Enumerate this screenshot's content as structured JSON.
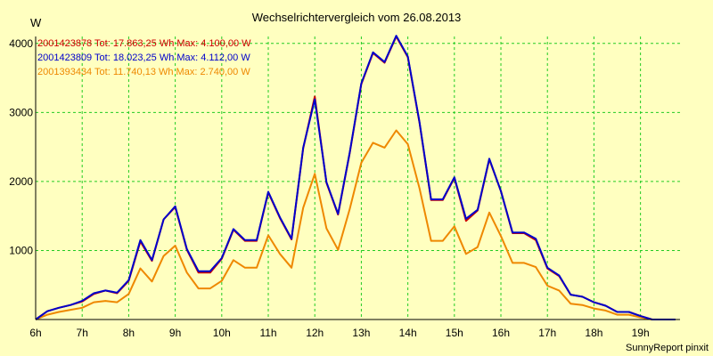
{
  "chart_data": {
    "type": "line",
    "title": "Wechselrichtervergleich vom 26.08.2013",
    "ylabel": "W",
    "ylim": [
      0,
      4100
    ],
    "yticks": [
      1000,
      2000,
      3000,
      4000
    ],
    "xlim": [
      6,
      19.85
    ],
    "xticks": [
      {
        "label": "6h",
        "value": 6
      },
      {
        "label": "7h",
        "value": 7
      },
      {
        "label": "8h",
        "value": 8
      },
      {
        "label": "9h",
        "value": 9
      },
      {
        "label": "10h",
        "value": 10
      },
      {
        "label": "11h",
        "value": 11
      },
      {
        "label": "12h",
        "value": 12
      },
      {
        "label": "13h",
        "value": 13
      },
      {
        "label": "14h",
        "value": 14
      },
      {
        "label": "15h",
        "value": 15
      },
      {
        "label": "16h",
        "value": 16
      },
      {
        "label": "17h",
        "value": 17
      },
      {
        "label": "18h",
        "value": 18
      },
      {
        "label": "19h",
        "value": 19
      }
    ],
    "grid": true,
    "legend_position": "top-left",
    "footer": "SunnyReport pinxit",
    "x": [
      6,
      6.25,
      6.5,
      6.75,
      7,
      7.25,
      7.5,
      7.75,
      8,
      8.25,
      8.5,
      8.75,
      9,
      9.25,
      9.5,
      9.75,
      10,
      10.25,
      10.5,
      10.75,
      11,
      11.25,
      11.5,
      11.75,
      12,
      12.25,
      12.5,
      12.75,
      13,
      13.25,
      13.5,
      13.75,
      14,
      14.25,
      14.5,
      14.75,
      15,
      15.25,
      15.5,
      15.75,
      16,
      16.25,
      16.5,
      16.75,
      17,
      17.25,
      17.5,
      17.75,
      18,
      18.25,
      18.5,
      18.75,
      19,
      19.25,
      19.5,
      19.75
    ],
    "series": [
      {
        "name": "2001423878",
        "legend_text": "2001423878 Tot: 17.863,25 Wh Max: 4.100,00 W",
        "color": "#cc0000",
        "values": [
          0,
          120,
          170,
          210,
          260,
          370,
          420,
          380,
          560,
          1130,
          850,
          1450,
          1630,
          1010,
          680,
          680,
          880,
          1300,
          1140,
          1140,
          1840,
          1470,
          1160,
          2480,
          3230,
          1980,
          1520,
          2410,
          3410,
          3860,
          3720,
          4100,
          3800,
          2850,
          1730,
          1730,
          2050,
          1430,
          1580,
          2320,
          1860,
          1250,
          1250,
          1150,
          740,
          630,
          360,
          330,
          250,
          200,
          110,
          110,
          50,
          0,
          0,
          0
        ]
      },
      {
        "name": "2001423809",
        "legend_text": "2001423809 Tot: 18.023,25 Wh Max: 4.112,00 W",
        "color": "#0000cc",
        "values": [
          0,
          120,
          170,
          210,
          270,
          380,
          420,
          390,
          570,
          1150,
          860,
          1450,
          1640,
          1020,
          700,
          700,
          890,
          1310,
          1150,
          1150,
          1850,
          1480,
          1170,
          2490,
          3190,
          1990,
          1530,
          2420,
          3420,
          3870,
          3730,
          4110,
          3810,
          2860,
          1740,
          1740,
          2060,
          1460,
          1590,
          2330,
          1860,
          1260,
          1260,
          1170,
          750,
          640,
          360,
          330,
          250,
          200,
          110,
          110,
          50,
          0,
          0,
          0
        ]
      },
      {
        "name": "2001393434",
        "legend_text": "2001393434 Tot: 11.740,13 Wh Max: 2.740,00 W",
        "color": "#ee8800",
        "values": [
          0,
          70,
          110,
          140,
          170,
          250,
          270,
          250,
          370,
          740,
          550,
          920,
          1070,
          680,
          450,
          450,
          560,
          860,
          750,
          750,
          1220,
          950,
          750,
          1620,
          2110,
          1320,
          1010,
          1600,
          2270,
          2560,
          2490,
          2740,
          2540,
          1900,
          1140,
          1140,
          1350,
          950,
          1050,
          1550,
          1210,
          820,
          820,
          760,
          490,
          420,
          230,
          210,
          160,
          130,
          70,
          70,
          30,
          0,
          0,
          0
        ]
      }
    ]
  }
}
